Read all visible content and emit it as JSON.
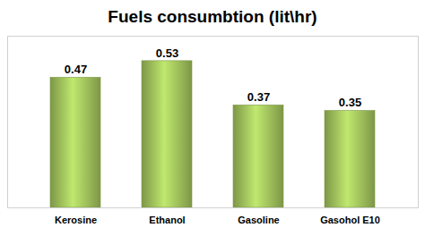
{
  "chart_data": {
    "type": "bar",
    "title": "Fuels consumbtion (lit\\hr)",
    "categories": [
      "Kerosine",
      "Ethanol",
      "Gasoline",
      "Gasohol E10"
    ],
    "values": [
      0.47,
      0.53,
      0.37,
      0.35
    ],
    "color": "#9bbb59",
    "ylim": [
      0,
      0.62
    ],
    "grid": false,
    "data_labels": true,
    "tick_labels": "x"
  }
}
